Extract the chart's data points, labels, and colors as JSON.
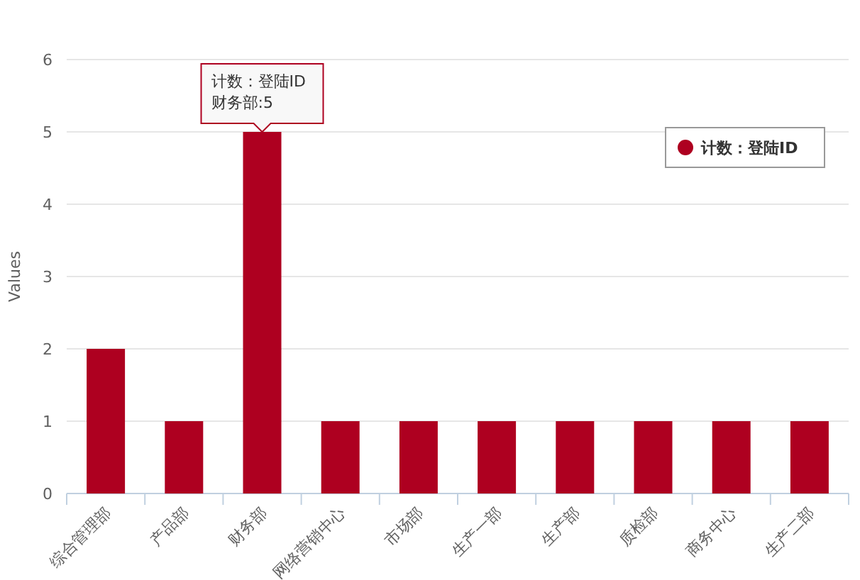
{
  "chart_data": {
    "type": "bar",
    "ylabel": "Values",
    "categories": [
      "综合管理部",
      "产品部",
      "财务部",
      "网络营销中心",
      "市场部",
      "生产一部",
      "生产部",
      "质检部",
      "商务中心",
      "生产二部"
    ],
    "series": [
      {
        "name": "计数：登陆ID",
        "color": "#ae0020",
        "values": [
          2,
          1,
          5,
          1,
          1,
          1,
          1,
          1,
          1,
          1
        ]
      }
    ],
    "ylim": [
      0,
      6
    ],
    "yticks": [
      0,
      1,
      2,
      3,
      4,
      5,
      6
    ],
    "grid": "y",
    "legend": "top right",
    "annotations": [
      {
        "text": "计数：登陆ID",
        "x": "财务部",
        "y": 5
      },
      {
        "text": "财务部:5",
        "x": "财务部",
        "y": 5
      }
    ]
  }
}
